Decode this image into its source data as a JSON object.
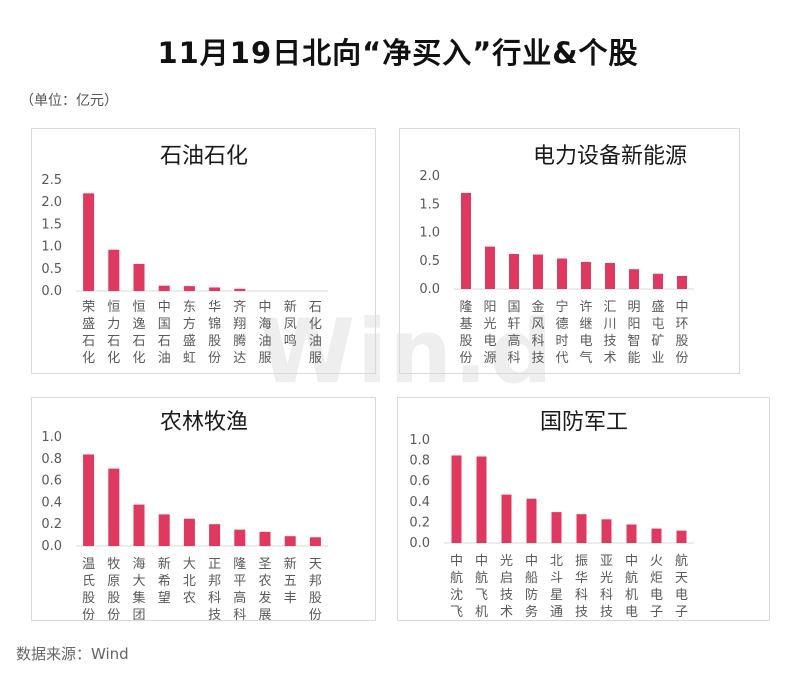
{
  "page": {
    "title": "11月19日北向“净买入”行业&个股",
    "unit_note": "（单位：亿元）",
    "source": "数据来源：Wind",
    "watermark": "Win.d"
  },
  "bar_color": "#e0395f",
  "chart_data": [
    {
      "type": "bar",
      "title": "石油石化",
      "categories": [
        "荣盛石化",
        "恒力石化",
        "恒逸石化",
        "中国石油",
        "东方盛虹",
        "华锦股份",
        "齐翔腾达",
        "中海油服",
        "新凤鸣",
        "石化油服"
      ],
      "values": [
        2.2,
        0.93,
        0.61,
        0.12,
        0.11,
        0.08,
        0.05,
        0.0,
        0.0,
        0.0
      ],
      "ylim": [
        0,
        2.5
      ],
      "yticks": [
        "0.0",
        "0.5",
        "1.0",
        "1.5",
        "2.0",
        "2.5"
      ]
    },
    {
      "type": "bar",
      "title": "电力设备新能源",
      "categories": [
        "隆基股份",
        "阳光电源",
        "国轩高科",
        "金风科技",
        "宁德时代",
        "许继电气",
        "汇川技术",
        "明阳智能",
        "盛屯矿业",
        "中环股份"
      ],
      "values": [
        1.7,
        0.75,
        0.62,
        0.61,
        0.54,
        0.48,
        0.46,
        0.35,
        0.27,
        0.23
      ],
      "ylim": [
        0,
        2.0
      ],
      "yticks": [
        "0.0",
        "0.5",
        "1.0",
        "1.5",
        "2.0"
      ]
    },
    {
      "type": "bar",
      "title": "农林牧渔",
      "categories": [
        "温氏股份",
        "牧原股份",
        "海大集团",
        "新希望",
        "大北农",
        "正邦科技",
        "隆平高科",
        "圣农发展",
        "新五丰",
        "天邦股份"
      ],
      "values": [
        0.84,
        0.71,
        0.38,
        0.29,
        0.25,
        0.2,
        0.15,
        0.13,
        0.09,
        0.08
      ],
      "ylim": [
        0,
        1.0
      ],
      "yticks": [
        "0.0",
        "0.2",
        "0.4",
        "0.6",
        "0.8",
        "1.0"
      ]
    },
    {
      "type": "bar",
      "title": "国防军工",
      "categories": [
        "中航沈飞",
        "中航飞机",
        "光启技术",
        "中船防务",
        "北斗星通",
        "振华科技",
        "亚光科技",
        "中航机电",
        "火炬电子",
        "航天电子"
      ],
      "values": [
        0.85,
        0.84,
        0.47,
        0.43,
        0.3,
        0.28,
        0.23,
        0.18,
        0.14,
        0.12
      ],
      "ylim": [
        0,
        1.0
      ],
      "yticks": [
        "0.0",
        "0.2",
        "0.4",
        "0.6",
        "0.8",
        "1.0"
      ]
    }
  ]
}
